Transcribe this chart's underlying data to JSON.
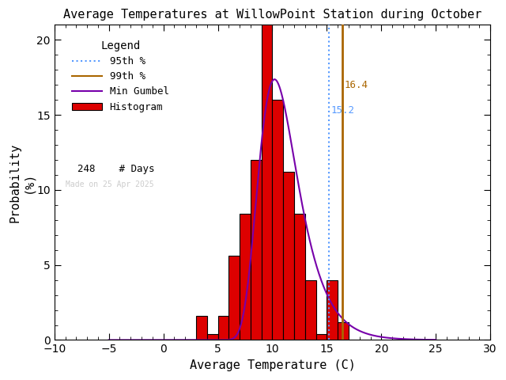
{
  "title": "Average Temperatures at WillowPoint Station during October",
  "xlabel": "Average Temperature (C)",
  "ylabel": "Probability\n(%)",
  "xlim": [
    -10,
    30
  ],
  "ylim": [
    0,
    21
  ],
  "xticks": [
    -10,
    -5,
    0,
    5,
    10,
    15,
    20,
    25,
    30
  ],
  "yticks": [
    0,
    5,
    10,
    15,
    20
  ],
  "bar_left_edges": [
    3,
    4,
    5,
    6,
    7,
    8,
    9,
    10,
    11,
    12,
    13,
    14,
    15,
    16
  ],
  "bar_heights": [
    1.6,
    0.4,
    1.6,
    5.6,
    8.4,
    12.0,
    21.0,
    16.0,
    11.2,
    8.4,
    4.0,
    0.4,
    4.0,
    1.2
  ],
  "bar_color": "#dd0000",
  "bar_edge_color": "#000000",
  "gumbel_mu": 10.2,
  "gumbel_beta": 1.8,
  "gumbel_scale": 85.0,
  "p95_value": 15.2,
  "p99_value": 16.4,
  "p95_color": "#5599ff",
  "p99_color": "#aa6600",
  "gumbel_color": "#7700aa",
  "n_days": 248,
  "made_on_text": "Made on 25 Apr 2025",
  "made_on_color": "#cccccc",
  "legend_title": "Legend",
  "title_fontsize": 11,
  "axis_fontsize": 11,
  "tick_fontsize": 10
}
